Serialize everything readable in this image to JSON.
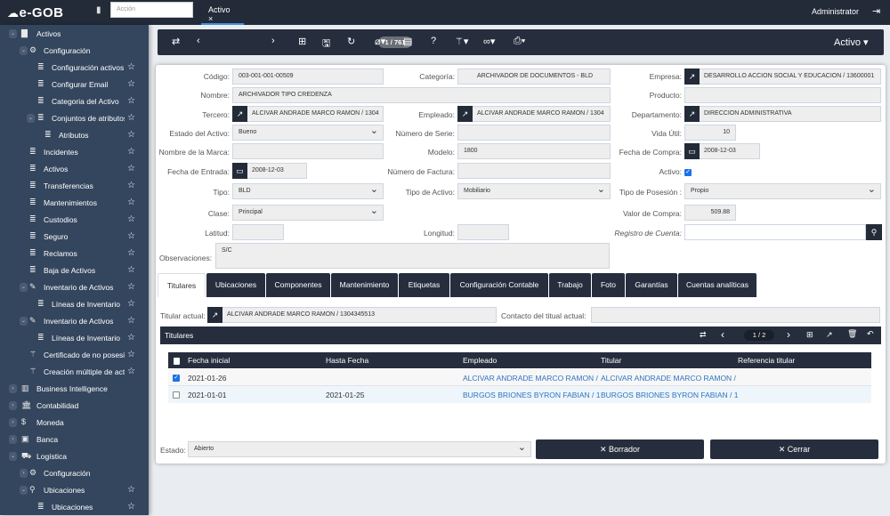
{
  "app": {
    "logo": "e-GOB",
    "search_placeholder": "Acción",
    "tab": "Activo",
    "tab_close": "×",
    "user": "Administrator"
  },
  "sidebar": {
    "items": [
      {
        "label": "Activos",
        "level": 0,
        "icon": "▇",
        "chev": "⌄",
        "star": false
      },
      {
        "label": "Configuración",
        "level": 1,
        "icon": "⚙",
        "chev": "⌄",
        "star": false
      },
      {
        "label": "Configuración activos",
        "level": 2,
        "icon": "≣",
        "star": true
      },
      {
        "label": "Configurar Email",
        "level": 2,
        "icon": "≣",
        "star": true
      },
      {
        "label": "Categoria del Activo",
        "level": 2,
        "icon": "≣",
        "star": true
      },
      {
        "label": "Conjuntos de atributos",
        "level": 2,
        "icon": "≣",
        "chev": "⌄",
        "star": true
      },
      {
        "label": "Atributos",
        "level": 3,
        "icon": "≣",
        "star": true
      },
      {
        "label": "Incidentes",
        "level": 1,
        "icon": "≣",
        "star": true
      },
      {
        "label": "Activos",
        "level": 1,
        "icon": "≣",
        "star": true
      },
      {
        "label": "Transferencias",
        "level": 1,
        "icon": "≣",
        "star": true
      },
      {
        "label": "Mantenimientos",
        "level": 1,
        "icon": "≣",
        "star": true
      },
      {
        "label": "Custodios",
        "level": 1,
        "icon": "≣",
        "star": true
      },
      {
        "label": "Seguro",
        "level": 1,
        "icon": "≣",
        "star": true
      },
      {
        "label": "Reclamos",
        "level": 1,
        "icon": "≣",
        "star": true
      },
      {
        "label": "Baja de Activos",
        "level": 1,
        "icon": "≣",
        "star": true
      },
      {
        "label": "Inventario de Activos",
        "level": 1,
        "icon": "✎",
        "chev": "⌄",
        "star": true
      },
      {
        "label": "Líneas de Inventario",
        "level": 2,
        "icon": "≣",
        "star": true
      },
      {
        "label": "Inventario de Activos",
        "level": 1,
        "icon": "✎",
        "chev": "⌄",
        "star": true
      },
      {
        "label": "Líneas de Inventario",
        "level": 2,
        "icon": "≣",
        "star": true
      },
      {
        "label": "Certificado de no posesión",
        "level": 1,
        "icon": "⚚",
        "star": true
      },
      {
        "label": "Creación múltiple de activos",
        "level": 1,
        "icon": "⚚",
        "star": true
      },
      {
        "label": "Business Intelligence",
        "level": 0,
        "icon": "▥",
        "chev": "›",
        "star": false
      },
      {
        "label": "Contabilidad",
        "level": 0,
        "icon": "🏛",
        "chev": "›",
        "star": false
      },
      {
        "label": "Moneda",
        "level": 0,
        "icon": "$",
        "chev": "›",
        "star": false
      },
      {
        "label": "Banca",
        "level": 0,
        "icon": "▣",
        "chev": "›",
        "star": false
      },
      {
        "label": "Logística",
        "level": 0,
        "icon": "⛟",
        "chev": "⌄",
        "star": false
      },
      {
        "label": "Configuración",
        "level": 1,
        "icon": "⚙",
        "chev": "›",
        "star": false
      },
      {
        "label": "Ubicaciones",
        "level": 1,
        "icon": "⚲",
        "chev": "⌄",
        "star": true
      },
      {
        "label": "Ubicaciones",
        "level": 2,
        "icon": "≣",
        "star": true
      }
    ]
  },
  "toolbar": {
    "pager": "1 / 761",
    "record_type": "Activo ▾"
  },
  "form": {
    "codigo_l": "Código:",
    "codigo": "003-001-001-00509",
    "categoria_l": "Categoría:",
    "categoria": "ARCHIVADOR DE DOCUMENTOS - BLD",
    "empresa_l": "Empresa:",
    "empresa": "DESARROLLO ACCION SOCIAL Y EDUCACION / 13600001",
    "nombre_l": "Nombre:",
    "nombre": "ARCHIVADOR TIPO CREDENZA",
    "producto_l": "Producto:",
    "producto": "",
    "tercero_l": "Tercero:",
    "tercero": "ALCIVAR ANDRADE MARCO RAMON / 1304",
    "empleado_l": "Empleado:",
    "empleado": "ALCIVAR ANDRADE MARCO RAMON / 1304",
    "departamento_l": "Departamento:",
    "departamento": "DIRECCION ADMINISTRATIVA",
    "estado_l": "Estado del Activo:",
    "estado": "Bueno",
    "serie_l": "Número de Serie:",
    "serie": "",
    "vida_l": "Vida Útil:",
    "vida": "10",
    "marca_l": "Nombre de la Marca:",
    "marca": "",
    "modelo_l": "Modelo:",
    "modelo": "1800",
    "fcompra_l": "Fecha de Compra:",
    "fcompra": "2008-12-03",
    "fentrada_l": "Fecha de Entrada:",
    "fentrada": "2008-12-03",
    "factura_l": "Número de Factura:",
    "factura": "",
    "activo_l": "Activo:",
    "activo": true,
    "tipo_l": "Tipo:",
    "tipo": "BLD",
    "tipoactivo_l": "Tipo de Activo:",
    "tipoactivo": "Mobiliario",
    "posesion_l": "Tipo de Posesión :",
    "posesion": "Propio",
    "clase_l": "Clase:",
    "clase": "Principal",
    "valor_l": "Valor de Compra:",
    "valor": "509.88",
    "latitud_l": "Latitud:",
    "latitud": "",
    "longitud_l": "Longitud:",
    "longitud": "",
    "registro_l": "Registro de Cuenta:",
    "registro": "",
    "obs_l": "Observaciones:",
    "obs": "S/C"
  },
  "tabs": [
    "Titulares",
    "Ubicaciones",
    "Componentes",
    "Mantenimiento",
    "Etiquetas",
    "Configuración Contable",
    "Trabajo",
    "Foto",
    "Garantías",
    "Cuentas analíticas"
  ],
  "titulares": {
    "actual_l": "Titular actual:",
    "actual": "ALCIVAR ANDRADE MARCO RAMON / 1304345513",
    "contacto_l": "Contacto del titual actual:",
    "contacto": "",
    "title": "Titulares",
    "pager": "1 / 2",
    "columns": [
      "Fecha inicial",
      "Hasta Fecha",
      "Empleado",
      "Titular",
      "Referencia titular"
    ],
    "rows": [
      {
        "checked": true,
        "fecha_inicial": "2021-01-26",
        "hasta": "",
        "empleado": "ALCIVAR ANDRADE MARCO RAMON /",
        "titular": "ALCIVAR ANDRADE MARCO RAMON /",
        "referencia": ""
      },
      {
        "checked": false,
        "fecha_inicial": "2021-01-01",
        "hasta": "2021-01-25",
        "empleado": "BURGOS BRIONES BYRON FABIAN / 1",
        "titular": "BURGOS BRIONES BYRON FABIAN / 1",
        "referencia": ""
      }
    ]
  },
  "footer": {
    "estado_l": "Estado:",
    "estado": "Abierto",
    "borrador": "✕ Borrador",
    "cerrar": "✕ Cerrar"
  }
}
